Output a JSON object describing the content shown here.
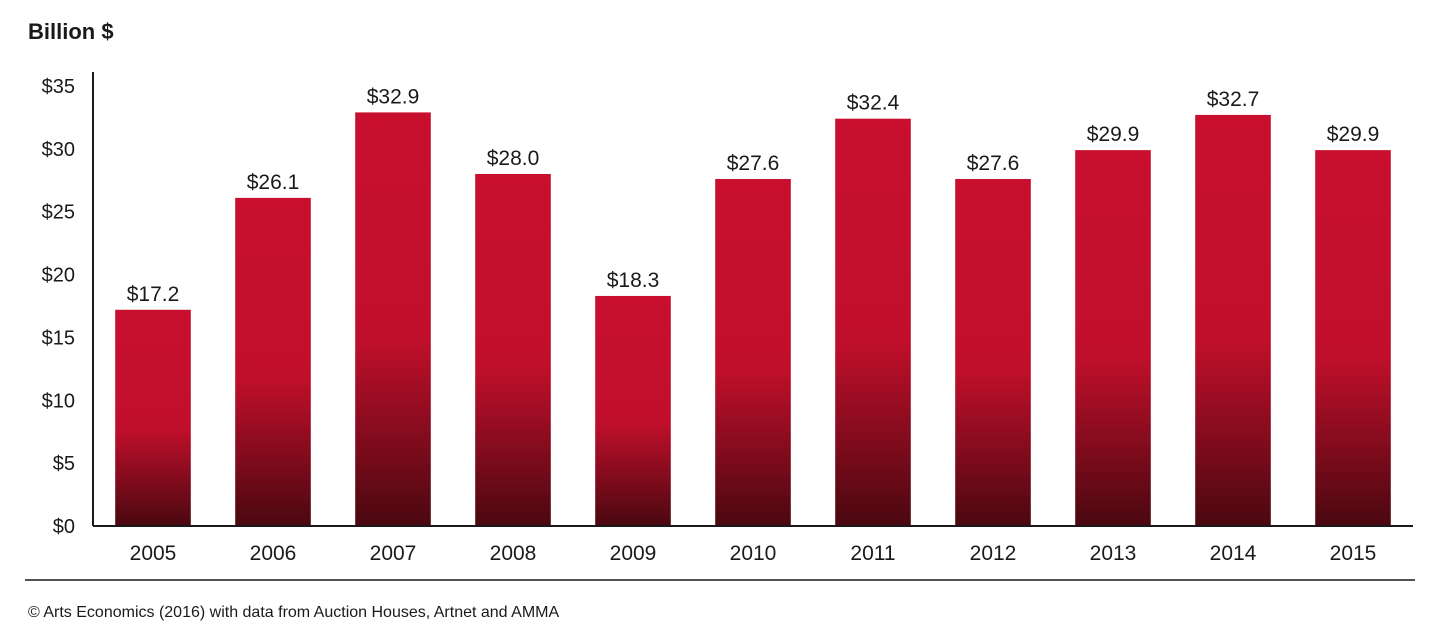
{
  "chart_data": {
    "type": "bar",
    "unit_label": "Billion $",
    "categories": [
      "2005",
      "2006",
      "2007",
      "2008",
      "2009",
      "2010",
      "2011",
      "2012",
      "2013",
      "2014",
      "2015"
    ],
    "values": [
      17.2,
      26.1,
      32.9,
      28.0,
      18.3,
      27.6,
      32.4,
      27.6,
      29.9,
      32.7,
      29.9
    ],
    "data_labels": [
      "$17.2",
      "$26.1",
      "$32.9",
      "$28.0",
      "$18.3",
      "$27.6",
      "$32.4",
      "$27.6",
      "$29.9",
      "$32.7",
      "$29.9"
    ],
    "y_ticks": [
      0,
      5,
      10,
      15,
      20,
      25,
      30,
      35
    ],
    "y_tick_labels": [
      "$0",
      "$5",
      "$10",
      "$15",
      "$20",
      "$25",
      "$30",
      "$35"
    ],
    "ylim": [
      0,
      35
    ],
    "grid": false,
    "legend": "none",
    "bar_color": "#c8102e",
    "bar_color_dark": "#5a0a14",
    "source": "© Arts Economics (2016) with data from Auction Houses, Artnet and AMMA"
  }
}
